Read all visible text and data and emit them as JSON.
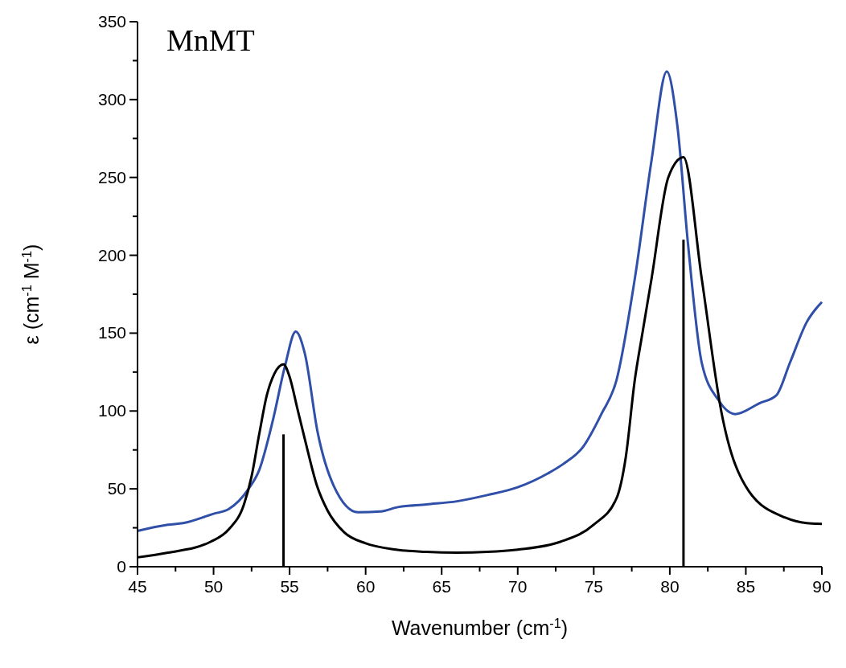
{
  "chart_data": {
    "type": "line",
    "title": "MnMT",
    "xlabel": "Wavenumber (cm$^{-1}$)",
    "ylabel": "ε (cm$^{-1}$ M$^{-1}$)",
    "xlim": [
      45,
      90
    ],
    "ylim": [
      0,
      350
    ],
    "xticks": [
      45,
      {
        "value": 47.5,
        "label": null
      },
      50,
      {
        "value": 52.5,
        "label": null
      },
      55,
      {
        "value": 57.5,
        "label": null
      },
      60,
      {
        "value": 62.5,
        "label": null
      },
      65,
      {
        "value": 67.5,
        "label": null
      },
      70,
      {
        "value": 72.5,
        "label": null
      },
      75,
      {
        "value": 77.5,
        "label": null
      },
      80,
      {
        "value": 82.5,
        "label": null
      },
      85,
      {
        "value": 87.5,
        "label": null
      },
      90
    ],
    "yticks": [
      0,
      {
        "value": 25,
        "label": null
      },
      50,
      {
        "value": 75,
        "label": null
      },
      100,
      {
        "value": 125,
        "label": null
      },
      150,
      {
        "value": 175,
        "label": null
      },
      200,
      {
        "value": 225,
        "label": null
      },
      250,
      {
        "value": 275,
        "label": null
      },
      300,
      {
        "value": 325,
        "label": null
      },
      350
    ],
    "grid": false,
    "marker": "none",
    "line_style": "solid",
    "series": [
      {
        "color": "#2f4fa8",
        "x": [
          45,
          47,
          48,
          50,
          51,
          52.3,
          53,
          53.9,
          54.7,
          55.4,
          56,
          56.85,
          57.9,
          59.5,
          61,
          62,
          64,
          66,
          68,
          70,
          72,
          73,
          74.3,
          75.5,
          76.5,
          77.7,
          78.8,
          79.8,
          80.5,
          81.2,
          82.1,
          83.2,
          84.3,
          85.9,
          87,
          87.9,
          89,
          90
        ],
        "values": [
          23,
          27,
          28,
          34,
          37,
          50,
          62,
          94,
          129,
          151,
          137,
          86,
          52,
          35,
          35.5,
          38,
          40,
          42,
          46,
          51,
          60,
          66,
          77,
          98,
          120,
          185,
          261,
          318,
          283,
          207,
          131,
          107,
          98,
          105,
          110,
          131,
          157,
          170
        ]
      },
      {
        "color": "#000000",
        "x": [
          45,
          47,
          49.8,
          51,
          52,
          52.5,
          53,
          53.5,
          54,
          54.6,
          55,
          55.5,
          56,
          56.8,
          57.5,
          58.6,
          60,
          62,
          64,
          66,
          68,
          70,
          72.8,
          75,
          76.5,
          77.1,
          77.7,
          78.2,
          78.8,
          79.9,
          80.9,
          82.1,
          83.4,
          85.2,
          87.6,
          89,
          90
        ],
        "values": [
          6,
          9,
          16,
          24,
          40,
          58,
          85,
          110,
          124,
          130,
          122,
          102,
          82,
          52,
          36,
          22,
          15,
          11,
          9.5,
          9,
          9.5,
          11,
          16,
          27,
          44,
          70,
          120,
          150,
          185,
          250,
          263,
          185,
          99,
          48.5,
          31.5,
          28,
          27.5
        ]
      },
      {
        "type": "bar",
        "color": "#000000",
        "x": [
          54.6,
          80.9
        ],
        "values": [
          85,
          210
        ]
      }
    ]
  }
}
